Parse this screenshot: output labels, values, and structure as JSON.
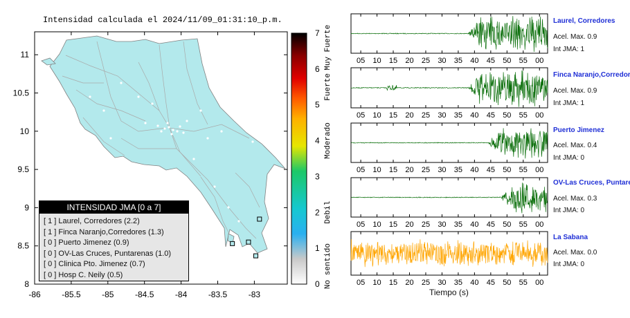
{
  "title": "Intensidad calculada el 2024/11/09_01:31:10_p.m.",
  "map": {
    "lon_ticks": [
      "-86",
      "-85.5",
      "-85",
      "-84.5",
      "-84",
      "-83.5",
      "-83"
    ],
    "lat_ticks": [
      "8",
      "8.5",
      "9",
      "9.5",
      "10",
      "10.5",
      "11"
    ],
    "land_color": "#b3e9ec",
    "road_color": "#a9a9a9"
  },
  "legend": {
    "header": "INTENSIDAD JMA [0 a 7]",
    "items": [
      "[ 1 ] Laurel, Corredores (2.2)",
      "[ 1 ] Finca Naranjo,Corredores (1.3)",
      "[ 0 ] Puerto Jimenez (0.9)",
      "[ 0 ] OV-Las Cruces, Puntarenas (1.0)",
      "[ 0 ] Clinica Pto. Jimenez (0.7)",
      "[ 0 ] Hosp C. Neily (0.5)"
    ]
  },
  "colorbar": {
    "ticks": [
      "0",
      "1",
      "2",
      "3",
      "4",
      "5",
      "6",
      "7"
    ],
    "categories": [
      "No sentido",
      "Debil",
      "Moderado",
      "Fuerte",
      "Muy Fuerte"
    ]
  },
  "stations": [
    {
      "name": "Laurel, Corredores",
      "accel": "Acel. Max. 0.9",
      "jma": "Int JMA: 1",
      "color": "#0a6e0a"
    },
    {
      "name": "Finca Naranjo,Corredores",
      "accel": "Acel. Max. 0.9",
      "jma": "Int JMA: 1",
      "color": "#0a6e0a"
    },
    {
      "name": "Puerto Jimenez",
      "accel": "Acel. Max. 0.4",
      "jma": "Int JMA: 0",
      "color": "#0a6e0a"
    },
    {
      "name": "OV-Las Cruces, Puntarenas",
      "accel": "Acel. Max. 0.3",
      "jma": "Int JMA: 0",
      "color": "#0a6e0a"
    },
    {
      "name": "La Sabana",
      "accel": "Acel. Max. 0.0",
      "jma": "Int JMA: 0",
      "color": "#ffa500"
    }
  ],
  "time_ticks": [
    "05",
    "10",
    "15",
    "20",
    "25",
    "30",
    "35",
    "40",
    "45",
    "50",
    "55",
    "00"
  ],
  "time_label": "Tiempo (s)",
  "chart_data": [
    {
      "type": "scatter",
      "title": "Intensidad calculada el 2024/11/09_01:31:10_p.m.",
      "xlim": [
        -86,
        -82.55
      ],
      "ylim": [
        8,
        11.3
      ],
      "points": [
        {
          "x": -82.93,
          "y": 8.85,
          "label": "Laurel, Corredores"
        },
        {
          "x": -83.08,
          "y": 8.55,
          "label": "Finca Naranjo,Corredores"
        },
        {
          "x": -83.3,
          "y": 8.53,
          "label": "Puerto Jimenez"
        },
        {
          "x": -82.98,
          "y": 8.37,
          "label": "OV-Las Cruces, Puntarenas"
        }
      ]
    },
    {
      "type": "line",
      "xlabel": "Tiempo (s)",
      "series": [
        {
          "name": "Laurel, Corredores",
          "onset": 38,
          "envelope": 1.0
        },
        {
          "name": "Finca Naranjo,Corredores",
          "onset": 38,
          "envelope": 1.0
        },
        {
          "name": "Puerto Jimenez",
          "onset": 44,
          "envelope": 0.9
        },
        {
          "name": "OV-Las Cruces, Puntarenas",
          "onset": 48,
          "envelope": 0.9
        },
        {
          "name": "La Sabana",
          "onset": 0,
          "envelope": 0.6
        }
      ]
    }
  ]
}
